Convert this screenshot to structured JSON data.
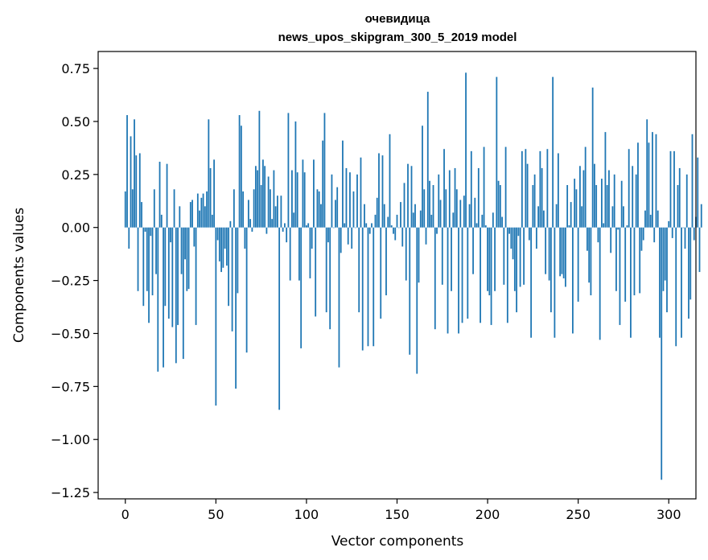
{
  "chart_data": {
    "type": "bar",
    "title": "очевидица",
    "subtitle": "news_upos_skipgram_300_5_2019 model",
    "xlabel": "Vector components",
    "ylabel": "Components values",
    "xlim": [
      -15,
      315
    ],
    "ylim": [
      -1.28,
      0.83
    ],
    "xticks": [
      0,
      50,
      100,
      150,
      200,
      250,
      300
    ],
    "yticks": [
      0.75,
      0.5,
      0.25,
      0.0,
      -0.25,
      -0.5,
      -0.75,
      -1.0,
      -1.25
    ],
    "ytick_labels": [
      "0.75",
      "0.50",
      "0.25",
      "0.00",
      "−0.25",
      "−0.50",
      "−0.75",
      "−1.00",
      "−1.25"
    ],
    "grid": false,
    "bar_color": "#1f77b4",
    "values": [
      0.17,
      0.53,
      -0.1,
      0.43,
      0.18,
      0.51,
      0.34,
      -0.3,
      0.35,
      0.12,
      -0.37,
      -0.02,
      -0.3,
      -0.45,
      -0.04,
      -0.32,
      0.18,
      -0.22,
      -0.68,
      0.31,
      0.06,
      -0.66,
      -0.37,
      0.3,
      -0.43,
      -0.07,
      -0.47,
      0.18,
      -0.64,
      -0.46,
      0.1,
      -0.22,
      -0.62,
      -0.15,
      -0.3,
      -0.29,
      0.12,
      0.13,
      -0.09,
      -0.46,
      0.16,
      0.08,
      0.14,
      0.16,
      0.1,
      0.17,
      0.51,
      0.28,
      0.06,
      0.32,
      -0.84,
      -0.06,
      -0.16,
      -0.21,
      -0.19,
      -0.1,
      -0.18,
      -0.37,
      0.03,
      -0.49,
      0.18,
      -0.76,
      -0.31,
      0.53,
      0.48,
      0.17,
      -0.1,
      -0.59,
      0.13,
      0.04,
      -0.02,
      0.18,
      0.29,
      0.27,
      0.55,
      0.2,
      0.32,
      0.29,
      -0.03,
      0.24,
      0.18,
      0.04,
      0.27,
      0.1,
      0.15,
      -0.86,
      0.15,
      -0.02,
      0.02,
      -0.07,
      0.54,
      -0.25,
      0.27,
      0.07,
      0.5,
      0.26,
      -0.25,
      -0.57,
      0.32,
      0.26,
      0.01,
      0.02,
      -0.24,
      -0.1,
      0.32,
      -0.42,
      0.18,
      0.17,
      0.11,
      0.41,
      0.54,
      -0.4,
      -0.07,
      -0.48,
      0.25,
      0.0,
      0.13,
      0.19,
      -0.66,
      -0.12,
      0.41,
      0.02,
      0.28,
      -0.08,
      0.26,
      -0.1,
      0.17,
      0.0,
      0.25,
      -0.4,
      0.33,
      -0.58,
      0.11,
      0.02,
      -0.56,
      -0.03,
      0.02,
      -0.56,
      0.06,
      0.14,
      0.35,
      -0.43,
      0.34,
      0.11,
      -0.32,
      0.05,
      0.44,
      0.01,
      -0.03,
      -0.06,
      0.06,
      0.0,
      0.12,
      -0.09,
      0.21,
      -0.25,
      0.3,
      -0.6,
      0.29,
      0.07,
      0.11,
      -0.69,
      -0.26,
      0.08,
      0.48,
      0.18,
      -0.08,
      0.64,
      0.22,
      0.06,
      0.2,
      -0.48,
      -0.03,
      0.25,
      0.13,
      -0.27,
      0.37,
      0.18,
      -0.5,
      0.27,
      -0.3,
      0.07,
      0.28,
      0.18,
      -0.5,
      0.13,
      -0.45,
      0.15,
      0.73,
      -0.43,
      0.11,
      0.36,
      -0.22,
      0.14,
      0.02,
      0.28,
      -0.45,
      0.06,
      0.38,
      0.01,
      -0.3,
      -0.32,
      -0.46,
      0.07,
      -0.3,
      0.71,
      0.22,
      0.2,
      0.05,
      -0.27,
      0.38,
      -0.45,
      -0.03,
      -0.1,
      -0.15,
      -0.3,
      -0.4,
      -0.04,
      -0.28,
      0.36,
      -0.27,
      0.37,
      0.3,
      -0.06,
      -0.52,
      0.2,
      0.25,
      -0.1,
      0.1,
      0.36,
      0.28,
      0.08,
      -0.22,
      0.37,
      -0.25,
      -0.4,
      0.71,
      -0.52,
      0.11,
      0.35,
      -0.23,
      -0.22,
      -0.24,
      -0.28,
      0.2,
      0.01,
      0.12,
      -0.5,
      0.23,
      0.18,
      -0.35,
      0.29,
      0.1,
      0.27,
      0.38,
      -0.11,
      -0.26,
      -0.32,
      0.66,
      0.3,
      0.2,
      -0.07,
      -0.53,
      0.23,
      0.02,
      0.45,
      0.2,
      0.27,
      -0.12,
      0.1,
      0.25,
      -0.3,
      -0.01,
      -0.46,
      0.22,
      0.1,
      -0.35,
      0.01,
      0.37,
      -0.52,
      0.29,
      -0.32,
      0.25,
      0.4,
      -0.31,
      -0.11,
      -0.06,
      0.08,
      0.51,
      0.4,
      0.06,
      0.45,
      -0.07,
      0.44,
      0.08,
      -0.52,
      -1.19,
      -0.3,
      -0.25,
      -0.4,
      0.03,
      0.36,
      -0.05,
      0.36,
      -0.56,
      0.2,
      0.28,
      -0.52,
      0.0,
      -0.1,
      0.25,
      -0.43,
      -0.34,
      0.44,
      -0.06,
      0.05,
      0.33,
      -0.21,
      0.11
    ]
  }
}
